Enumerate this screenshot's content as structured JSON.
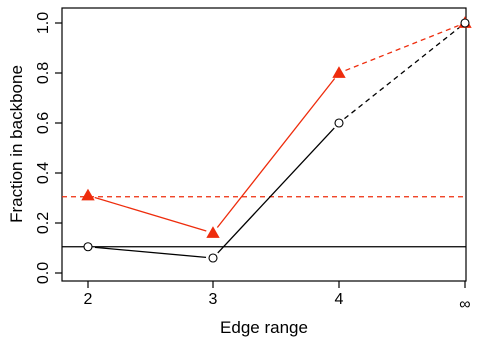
{
  "chart_data": {
    "type": "line",
    "xlabel": "Edge range",
    "ylabel": "Fraction in backbone",
    "categories": [
      "2",
      "3",
      "4",
      "∞"
    ],
    "ylim": [
      0,
      1
    ],
    "yticks": [
      "0.0",
      "0.2",
      "0.4",
      "0.6",
      "0.8",
      "1.0"
    ],
    "grid": false,
    "legend": "none",
    "series": [
      {
        "values": [
          0.31,
          0.16,
          0.8,
          1.0
        ],
        "color": "#ee2c0c",
        "marker": "filled-triangle",
        "reference_line": 0.305,
        "last_segment_style": "dashed"
      },
      {
        "values": [
          0.105,
          0.06,
          0.6,
          1.0
        ],
        "color": "#000000",
        "marker": "open-circle",
        "reference_line": 0.105,
        "last_segment_style": "dashed"
      }
    ]
  }
}
